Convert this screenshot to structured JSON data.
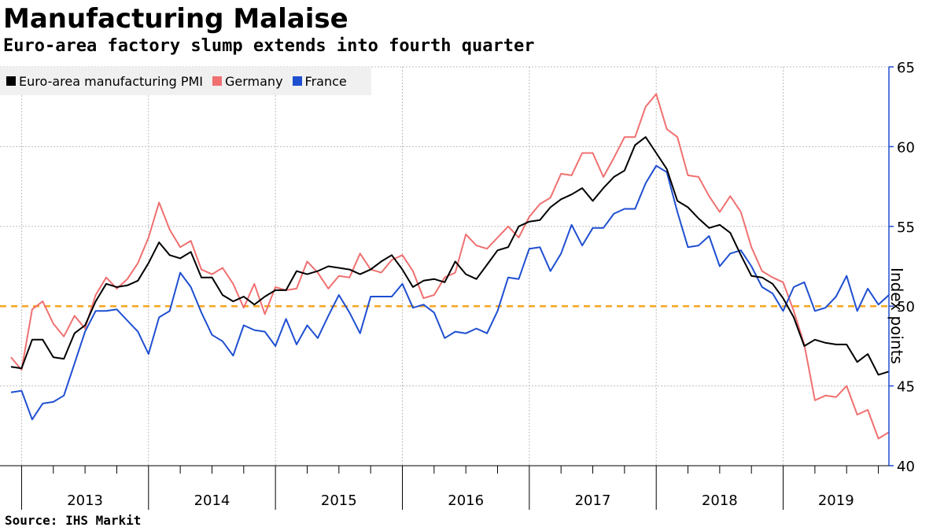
{
  "title": "Manufacturing Malaise",
  "subtitle": "Euro-area factory slump extends into fourth quarter",
  "source": "Source: IHS Markit",
  "colors": {
    "euro": "#000000",
    "germany": "#f07070",
    "france": "#1f4fd1",
    "reference": "#f5a623",
    "axis": "#1f4fd1"
  },
  "chart_data": {
    "type": "line",
    "title": "Manufacturing Malaise",
    "subtitle": "Euro-area factory slump extends into fourth quarter",
    "ylabel": "Index points",
    "xlabel": "",
    "ylim": [
      40,
      65
    ],
    "yticks": [
      40,
      45,
      50,
      55,
      60,
      65
    ],
    "x_start": "2012-12",
    "x_end": "2019-11",
    "year_labels": [
      "2013",
      "2014",
      "2015",
      "2016",
      "2017",
      "2018",
      "2019"
    ],
    "reference_line": 50,
    "grid": true,
    "legend_position": "top-left",
    "series": [
      {
        "name": "Euro-area manufacturing PMI",
        "color": "#000000",
        "values": [
          46.2,
          46.1,
          47.9,
          47.9,
          46.8,
          46.7,
          48.3,
          48.8,
          50.3,
          51.4,
          51.2,
          51.3,
          51.6,
          52.7,
          54.0,
          53.2,
          53.0,
          53.4,
          51.8,
          51.8,
          50.7,
          50.3,
          50.6,
          50.1,
          50.6,
          51.0,
          51.0,
          52.2,
          52.0,
          52.2,
          52.5,
          52.4,
          52.3,
          52.0,
          52.3,
          52.8,
          53.2,
          52.3,
          51.2,
          51.6,
          51.7,
          51.5,
          52.8,
          52.0,
          51.7,
          52.6,
          53.5,
          53.7,
          55.0,
          55.3,
          55.4,
          56.2,
          56.7,
          57.0,
          57.4,
          56.6,
          57.4,
          58.1,
          58.5,
          60.1,
          60.6,
          59.6,
          58.6,
          56.6,
          56.2,
          55.5,
          54.9,
          55.1,
          54.6,
          53.2,
          51.9,
          51.8,
          51.4,
          50.5,
          49.3,
          47.5,
          47.9,
          47.7,
          47.6,
          47.6,
          46.5,
          47.0,
          45.7,
          45.9
        ]
      },
      {
        "name": "Germany",
        "color": "#f07070",
        "values": [
          46.8,
          46.0,
          49.8,
          50.3,
          48.9,
          48.1,
          49.4,
          48.6,
          50.7,
          51.8,
          51.1,
          51.7,
          52.7,
          54.3,
          56.5,
          54.8,
          53.7,
          54.1,
          52.3,
          52.0,
          52.4,
          51.4,
          49.9,
          51.4,
          49.5,
          51.2,
          51.0,
          51.1,
          52.8,
          52.1,
          51.1,
          51.9,
          51.8,
          53.3,
          52.3,
          52.1,
          52.9,
          53.2,
          52.2,
          50.5,
          50.7,
          51.8,
          52.1,
          54.5,
          53.8,
          53.6,
          54.3,
          55.0,
          54.3,
          55.6,
          56.4,
          56.8,
          58.3,
          58.2,
          59.6,
          59.6,
          58.1,
          59.3,
          60.6,
          60.6,
          62.5,
          63.3,
          61.1,
          60.6,
          58.2,
          58.1,
          56.9,
          55.9,
          56.9,
          55.9,
          53.7,
          52.2,
          51.8,
          51.5,
          49.7,
          47.6,
          44.1,
          44.4,
          44.3,
          45.0,
          43.2,
          43.5,
          41.7,
          42.1
        ]
      },
      {
        "name": "France",
        "color": "#1f4fd1",
        "values": [
          44.6,
          44.7,
          42.9,
          43.9,
          44.0,
          44.4,
          46.4,
          48.4,
          49.7,
          49.7,
          49.8,
          49.1,
          48.4,
          47.0,
          49.3,
          49.7,
          52.1,
          51.2,
          49.6,
          48.2,
          47.8,
          46.9,
          48.8,
          48.5,
          48.4,
          47.5,
          49.2,
          47.6,
          48.8,
          48.0,
          49.4,
          50.7,
          49.6,
          48.3,
          50.6,
          50.6,
          50.6,
          51.4,
          49.9,
          50.1,
          49.6,
          48.0,
          48.4,
          48.3,
          48.6,
          48.3,
          49.7,
          51.8,
          51.7,
          53.6,
          53.7,
          52.2,
          53.3,
          55.1,
          53.8,
          54.9,
          54.9,
          55.8,
          56.1,
          56.1,
          57.7,
          58.8,
          58.4,
          55.9,
          53.7,
          53.8,
          54.4,
          52.5,
          53.3,
          53.5,
          52.5,
          51.2,
          50.8,
          49.7,
          51.2,
          51.5,
          49.7,
          49.9,
          50.6,
          51.9,
          49.7,
          51.1,
          50.1,
          50.7
        ]
      }
    ]
  }
}
